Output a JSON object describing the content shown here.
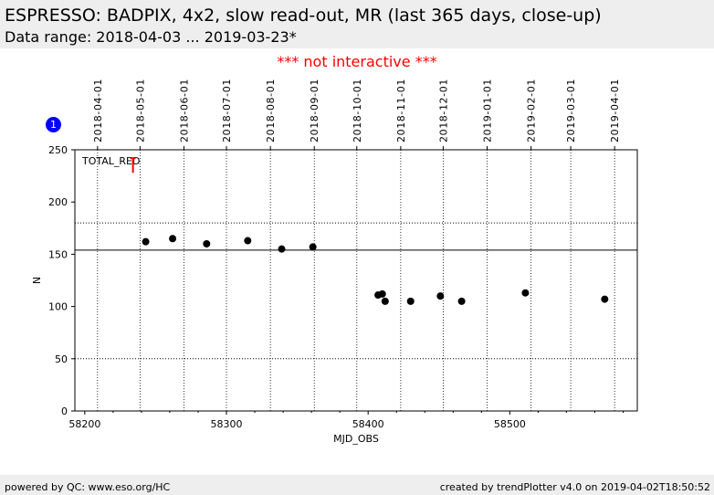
{
  "header": {
    "title": "ESPRESSO: BADPIX, 4x2, slow read-out, MR (last 365 days, close-up)",
    "subtitle": "Data range: 2018-04-03 ... 2019-03-23*"
  },
  "notice": "*** not interactive ***",
  "badge": "1",
  "footer": {
    "left": "powered by QC: www.eso.org/HC",
    "right": "created by trendPlotter v4.0 on 2019-04-02T18:50:52"
  },
  "chart_data": {
    "type": "scatter",
    "xlabel": "MJD_OBS",
    "ylabel": "N",
    "annotation": "TOTAL_RED",
    "xlim": [
      58193,
      58590
    ],
    "ylim": [
      0,
      250
    ],
    "x_ticks": [
      58200,
      58300,
      58400,
      58500
    ],
    "y_ticks": [
      0,
      50,
      100,
      150,
      200,
      250
    ],
    "date_ticks": [
      {
        "label": "2018-04-01",
        "mjd": 58209
      },
      {
        "label": "2018-05-01",
        "mjd": 58239
      },
      {
        "label": "2018-06-01",
        "mjd": 58270
      },
      {
        "label": "2018-07-01",
        "mjd": 58300
      },
      {
        "label": "2018-08-01",
        "mjd": 58331
      },
      {
        "label": "2018-09-01",
        "mjd": 58362
      },
      {
        "label": "2018-10-01",
        "mjd": 58392
      },
      {
        "label": "2018-11-01",
        "mjd": 58423
      },
      {
        "label": "2018-12-01",
        "mjd": 58453
      },
      {
        "label": "2019-01-01",
        "mjd": 58484
      },
      {
        "label": "2019-02-01",
        "mjd": 58515
      },
      {
        "label": "2019-03-01",
        "mjd": 58543
      },
      {
        "label": "2019-04-01",
        "mjd": 58574
      }
    ],
    "reference_lines": [
      {
        "y": 154,
        "style": "solid"
      },
      {
        "y": 180,
        "style": "dotted"
      },
      {
        "y": 50,
        "style": "dotted"
      }
    ],
    "outlier": {
      "x": 58234,
      "y": 235,
      "color": "#ff0000"
    },
    "series": [
      {
        "color": "#000000",
        "points": [
          {
            "x": 58243,
            "y": 162
          },
          {
            "x": 58262,
            "y": 165
          },
          {
            "x": 58286,
            "y": 160
          },
          {
            "x": 58315,
            "y": 163
          },
          {
            "x": 58339,
            "y": 155
          },
          {
            "x": 58361,
            "y": 157
          },
          {
            "x": 58407,
            "y": 111
          },
          {
            "x": 58410,
            "y": 112
          },
          {
            "x": 58412,
            "y": 105
          },
          {
            "x": 58430,
            "y": 105
          },
          {
            "x": 58451,
            "y": 110
          },
          {
            "x": 58466,
            "y": 105
          },
          {
            "x": 58511,
            "y": 113
          },
          {
            "x": 58567,
            "y": 107
          }
        ]
      }
    ]
  }
}
